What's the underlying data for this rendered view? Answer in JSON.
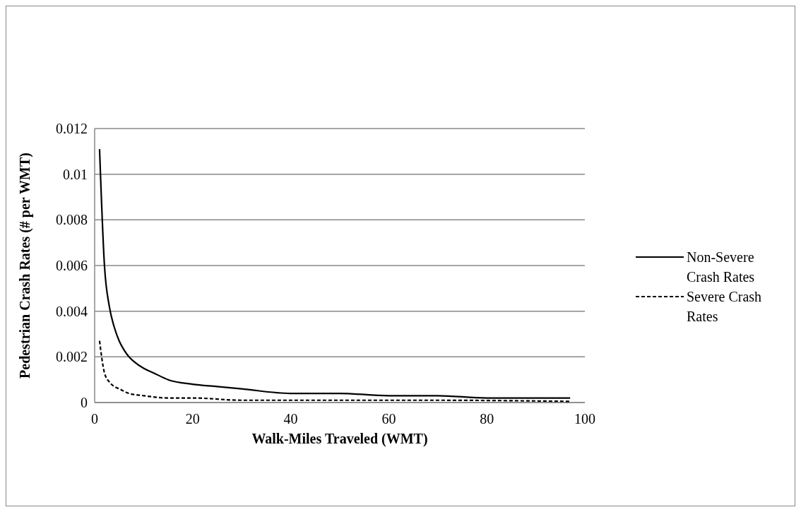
{
  "chart_data": {
    "type": "line",
    "xlabel": "Walk-Miles Traveled (WMT)",
    "ylabel": "Pedestrian Crash Rates (# per WMT)",
    "xlim": [
      0,
      100
    ],
    "xticks": [
      0,
      20,
      40,
      60,
      80,
      100
    ],
    "ylim": [
      0,
      0.012
    ],
    "yticks": [
      0,
      0.002,
      0.004,
      0.006,
      0.008,
      0.01,
      0.012
    ],
    "grid": "y",
    "legend": "right",
    "series": [
      {
        "name": "Non-Severe Crash Rates",
        "color": "#000000",
        "line_style": "solid",
        "x": [
          1,
          2,
          3,
          4,
          5,
          6,
          7,
          8,
          10,
          12,
          15,
          20,
          25,
          30,
          40,
          50,
          60,
          70,
          80,
          90,
          97
        ],
        "values": [
          0.0111,
          0.006,
          0.0042,
          0.0033,
          0.0027,
          0.0023,
          0.002,
          0.0018,
          0.0015,
          0.0013,
          0.001,
          0.0008,
          0.0007,
          0.0006,
          0.0004,
          0.0004,
          0.0003,
          0.0003,
          0.0002,
          0.0002,
          0.0002
        ]
      },
      {
        "name": "Severe Crash Rates",
        "color": "#000000",
        "line_style": "dashed",
        "x": [
          1,
          2,
          3,
          4,
          5,
          7,
          10,
          15,
          20,
          30,
          50,
          70,
          97
        ],
        "values": [
          0.0027,
          0.0013,
          0.0009,
          0.0007,
          0.0006,
          0.0004,
          0.0003,
          0.0002,
          0.0002,
          0.0001,
          0.0001,
          0.0001,
          5e-05
        ]
      }
    ]
  }
}
